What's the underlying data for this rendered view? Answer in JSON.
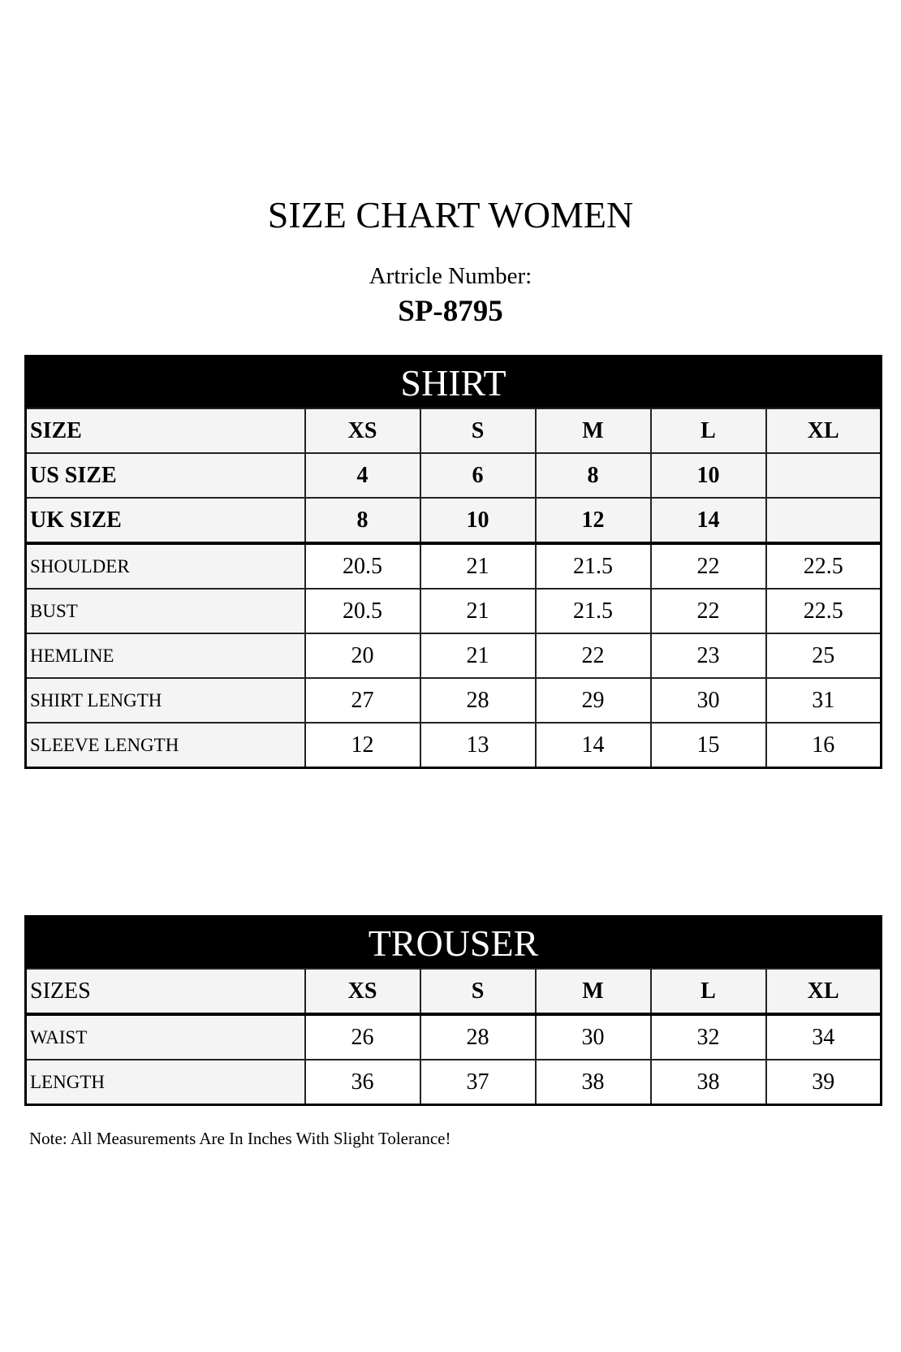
{
  "title": "SIZE CHART WOMEN",
  "article_label": "Artricle Number:",
  "article_number": "SP-8795",
  "shirt": {
    "heading": "SHIRT",
    "header_label": "SIZE",
    "sizes": [
      "XS",
      "S",
      "M",
      "L",
      "XL"
    ],
    "size_rows": [
      {
        "label": "US SIZE",
        "values": [
          "4",
          "6",
          "8",
          "10",
          ""
        ]
      },
      {
        "label": "UK SIZE",
        "values": [
          "8",
          "10",
          "12",
          "14",
          ""
        ]
      }
    ],
    "rows": [
      {
        "label": "SHOULDER",
        "values": [
          "20.5",
          "21",
          "21.5",
          "22",
          "22.5"
        ]
      },
      {
        "label": "BUST",
        "values": [
          "20.5",
          "21",
          "21.5",
          "22",
          "22.5"
        ]
      },
      {
        "label": "HEMLINE",
        "values": [
          "20",
          "21",
          "22",
          "23",
          "25"
        ]
      },
      {
        "label": "SHIRT LENGTH",
        "values": [
          "27",
          "28",
          "29",
          "30",
          "31"
        ]
      },
      {
        "label": "SLEEVE LENGTH",
        "values": [
          "12",
          "13",
          "14",
          "15",
          "16"
        ]
      }
    ]
  },
  "trouser": {
    "heading": "TROUSER",
    "header_label": "SIZES",
    "sizes": [
      "XS",
      "S",
      "M",
      "L",
      "XL"
    ],
    "rows": [
      {
        "label": "WAIST",
        "values": [
          "26",
          "28",
          "30",
          "32",
          "34"
        ]
      },
      {
        "label": "LENGTH",
        "values": [
          "36",
          "37",
          "38",
          "38",
          "39"
        ]
      }
    ]
  },
  "note": "Note: All Measurements Are In Inches With Slight Tolerance!"
}
